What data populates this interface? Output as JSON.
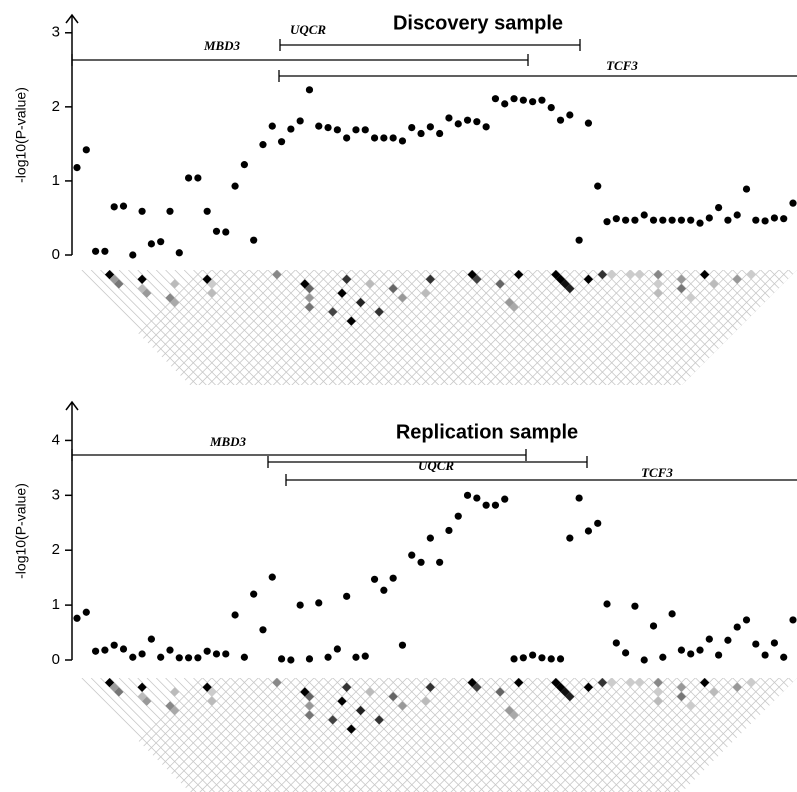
{
  "chart_data": [
    {
      "type": "scatter",
      "title": "Discovery sample",
      "y_label": "-log10(P-value)",
      "color": "#000000",
      "genes": [
        "MBD3",
        "UQCR",
        "TCF3"
      ],
      "ylim": [
        0,
        3.24
      ],
      "yticks": [
        0,
        1,
        2,
        3
      ],
      "values": [
        1.18,
        1.42,
        0.05,
        0.05,
        0.65,
        0.66,
        0.0,
        0.59,
        0.15,
        0.18,
        0.59,
        0.03,
        1.04,
        1.04,
        0.59,
        0.32,
        0.31,
        0.93,
        1.22,
        0.2,
        1.49,
        1.74,
        1.53,
        1.7,
        1.81,
        2.23,
        1.74,
        1.72,
        1.69,
        1.58,
        1.69,
        1.69,
        1.58,
        1.58,
        1.58,
        1.54,
        1.72,
        1.64,
        1.73,
        1.64,
        1.85,
        1.77,
        1.82,
        1.8,
        1.73,
        2.11,
        2.04,
        2.11,
        2.09,
        2.07,
        2.09,
        1.99,
        1.82,
        1.89,
        0.2,
        1.78,
        0.93,
        0.45,
        0.49,
        0.47,
        0.47,
        0.54,
        0.47,
        0.47,
        0.47,
        0.47,
        0.47,
        0.43,
        0.5,
        0.64,
        0.47,
        0.54,
        0.89,
        0.47,
        0.46,
        0.5,
        0.49,
        0.7
      ]
    },
    {
      "type": "scatter",
      "title": "Replication sample",
      "y_label": "-log10(P-value)",
      "color": "#000000",
      "genes": [
        "MBD3",
        "UQCR",
        "TCF3"
      ],
      "ylim": [
        0,
        4.7
      ],
      "yticks": [
        0,
        1,
        2,
        3,
        4
      ],
      "values": [
        0.76,
        0.87,
        0.16,
        0.18,
        0.27,
        0.2,
        0.05,
        0.11,
        0.38,
        0.05,
        0.18,
        0.04,
        0.04,
        0.04,
        0.16,
        0.11,
        0.11,
        0.82,
        0.05,
        1.2,
        0.55,
        1.51,
        0.02,
        0.0,
        1.0,
        0.02,
        1.04,
        0.05,
        0.2,
        1.16,
        0.05,
        0.07,
        1.47,
        1.27,
        1.49,
        0.27,
        1.91,
        1.78,
        2.22,
        1.78,
        2.36,
        2.62,
        3.0,
        2.95,
        2.82,
        2.82,
        2.93,
        0.02,
        0.04,
        0.09,
        0.04,
        0.02,
        0.02,
        2.22,
        2.95,
        2.35,
        2.49,
        1.02,
        0.31,
        0.13,
        0.98,
        0.0,
        0.62,
        0.05,
        0.84,
        0.18,
        0.11,
        0.18,
        0.38,
        0.09,
        0.36,
        0.6,
        0.73,
        0.29,
        0.09,
        0.31,
        0.05,
        0.73
      ]
    }
  ]
}
